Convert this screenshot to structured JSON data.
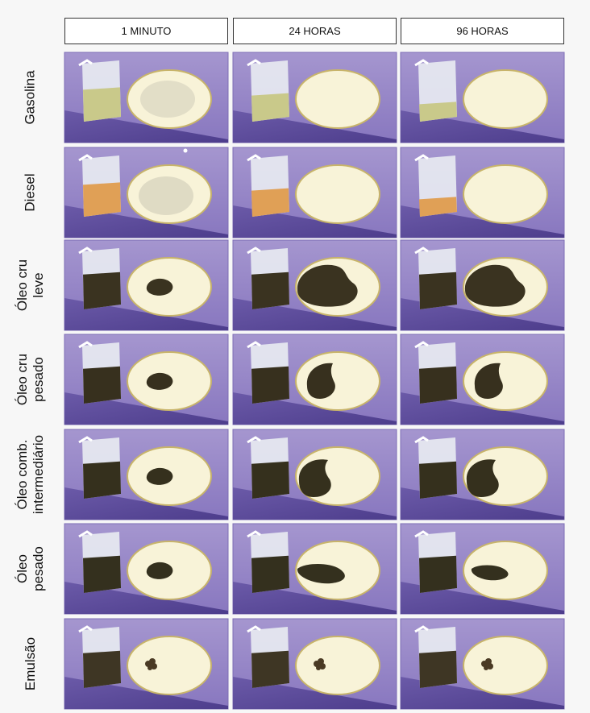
{
  "columns": [
    "1 MINUTO",
    "24 HORAS",
    "96 HORAS"
  ],
  "rows": [
    {
      "label": [
        "Gasolina"
      ],
      "liquid_color": "#c9c98a",
      "spills": [
        "gasoline-residue",
        "none",
        "none"
      ]
    },
    {
      "label": [
        "Diesel"
      ],
      "liquid_color": "#e0a056",
      "spills": [
        "diesel-residue",
        "none",
        "none"
      ]
    },
    {
      "label": [
        "Óleo cru",
        "leve"
      ],
      "liquid_color": "#3a3320",
      "spills": [
        "small-blob",
        "large-spread",
        "large-spread"
      ]
    },
    {
      "label": [
        "Óleo cru",
        "pesado"
      ],
      "liquid_color": "#37301e",
      "spills": [
        "small-blob",
        "teardrop",
        "teardrop"
      ]
    },
    {
      "label": [
        "Óleo comb.",
        "intermediário"
      ],
      "liquid_color": "#35301d",
      "spills": [
        "small-blob",
        "teardrop-large",
        "teardrop-large"
      ]
    },
    {
      "label": [
        "Óleo",
        "pesado"
      ],
      "liquid_color": "#34301e",
      "spills": [
        "small-blob",
        "elongated",
        "elongated-small"
      ]
    },
    {
      "label": [
        "Emulsão"
      ],
      "liquid_color": "#3e3624",
      "spills": [
        "tiny-cluster",
        "tiny-cluster",
        "tiny-cluster"
      ]
    }
  ],
  "colors": {
    "panel_light": "#9b8bc6",
    "panel_dark": "#5b4a98",
    "dish": "#f8f3d8",
    "dish_rim": "#c8b46a",
    "beaker_glass": "#e9ecf2"
  }
}
